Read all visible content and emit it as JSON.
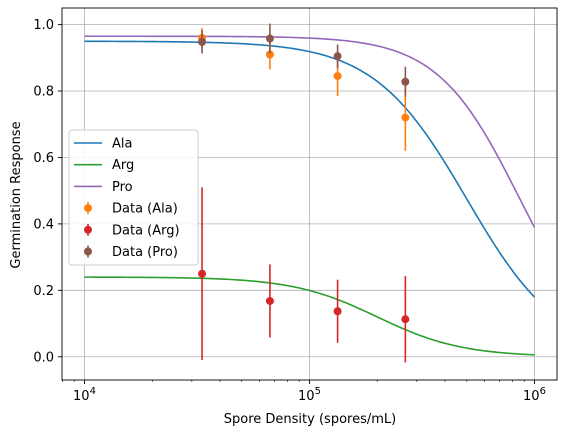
{
  "chart_data": {
    "type": "scatter",
    "xlabel": "Spore Density (spores/mL)",
    "ylabel": "Germination Response",
    "xscale": "log",
    "xlim": [
      7943,
      1258925
    ],
    "ylim": [
      -0.07,
      1.05
    ],
    "grid": true,
    "legend_position": "center-left",
    "x_ticks": [
      {
        "value": 10000,
        "base": "10",
        "exp": "4"
      },
      {
        "value": 100000,
        "base": "10",
        "exp": "5"
      },
      {
        "value": 1000000,
        "base": "10",
        "exp": "6"
      }
    ],
    "y_ticks": [
      {
        "value": 0.0,
        "label": "0.0"
      },
      {
        "value": 0.2,
        "label": "0.2"
      },
      {
        "value": 0.4,
        "label": "0.4"
      },
      {
        "value": 0.6,
        "label": "0.6"
      },
      {
        "value": 0.8,
        "label": "0.8"
      },
      {
        "value": 1.0,
        "label": "1.0"
      }
    ],
    "fit_lines": [
      {
        "name": "Ala",
        "color": "#1f77b4",
        "top": 0.95,
        "ec50": 500000,
        "hill": 2.1
      },
      {
        "name": "Arg",
        "color": "#2ca02c",
        "top": 0.24,
        "ec50": 200000,
        "hill": 2.3
      },
      {
        "name": "Pro",
        "color": "#9467bd",
        "top": 0.965,
        "ec50": 850000,
        "hill": 2.4
      }
    ],
    "error_series": [
      {
        "name": "Data (Ala)",
        "color": "#ff7f0e",
        "points": [
          {
            "x": 33300,
            "y": 0.96,
            "err": 0.03
          },
          {
            "x": 66700,
            "y": 0.91,
            "err": 0.045
          },
          {
            "x": 133300,
            "y": 0.845,
            "err": 0.06
          },
          {
            "x": 266700,
            "y": 0.72,
            "err": 0.1
          }
        ]
      },
      {
        "name": "Data (Arg)",
        "color": "#d62728",
        "points": [
          {
            "x": 33300,
            "y": 0.25,
            "err": 0.26
          },
          {
            "x": 66700,
            "y": 0.168,
            "err": 0.11
          },
          {
            "x": 133300,
            "y": 0.137,
            "err": 0.095
          },
          {
            "x": 266700,
            "y": 0.113,
            "err": 0.13
          }
        ]
      },
      {
        "name": "Data (Pro)",
        "color": "#8c564b",
        "points": [
          {
            "x": 33300,
            "y": 0.948,
            "err": 0.035
          },
          {
            "x": 66700,
            "y": 0.958,
            "err": 0.045
          },
          {
            "x": 133300,
            "y": 0.905,
            "err": 0.035
          },
          {
            "x": 266700,
            "y": 0.828,
            "err": 0.045
          }
        ]
      }
    ],
    "legend": [
      "Ala",
      "Arg",
      "Pro",
      "Data (Ala)",
      "Data (Arg)",
      "Data (Pro)"
    ]
  }
}
